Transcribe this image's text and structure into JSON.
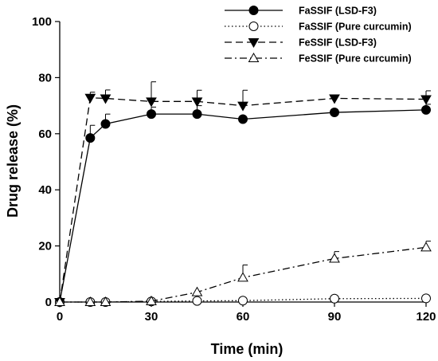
{
  "chart_data": {
    "type": "line",
    "title": "",
    "xlabel": "Time (min)",
    "ylabel": "Drug release (%)",
    "xlim": [
      0,
      120
    ],
    "ylim": [
      0,
      100
    ],
    "xticks": [
      0,
      30,
      60,
      90,
      120
    ],
    "yticks": [
      0,
      20,
      40,
      60,
      80,
      100
    ],
    "grid": false,
    "legend_position": "top-right",
    "series": [
      {
        "name": "FaSSIF (LSD-F3)",
        "marker": "filled-circle",
        "dash": "solid",
        "x": [
          0,
          10,
          15,
          30,
          45,
          60,
          90,
          120
        ],
        "y": [
          0,
          58.5,
          63.5,
          67,
          67,
          65.2,
          67.6,
          68.5
        ],
        "err": [
          0,
          4.5,
          3.5,
          2.5,
          3,
          0,
          0,
          2
        ]
      },
      {
        "name": "FaSSIF (Pure curcumin)",
        "marker": "open-circle",
        "dash": "dotted",
        "x": [
          0,
          10,
          15,
          30,
          45,
          60,
          90,
          120
        ],
        "y": [
          0,
          0,
          0,
          0.2,
          0.4,
          0.5,
          1.2,
          1.3
        ],
        "err": [
          0,
          0,
          0,
          0,
          0,
          0,
          0,
          0
        ]
      },
      {
        "name": "FeSSIF (LSD-F3)",
        "marker": "filled-triangle-down",
        "dash": "dashed",
        "x": [
          0,
          10,
          15,
          30,
          45,
          60,
          90,
          120
        ],
        "y": [
          0,
          72.8,
          72.6,
          71.5,
          71.5,
          70,
          72.6,
          72.3
        ],
        "err": [
          0,
          2,
          3,
          7,
          4,
          5.5,
          0,
          3
        ]
      },
      {
        "name": "FeSSIF (Pure curcumin)",
        "marker": "open-triangle-up",
        "dash": "dash-dot",
        "x": [
          0,
          10,
          15,
          30,
          45,
          60,
          90,
          120
        ],
        "y": [
          0,
          0,
          0,
          0.3,
          3.5,
          8.7,
          15.5,
          19.5
        ],
        "err": [
          0,
          0,
          0,
          0,
          0,
          4.5,
          2.5,
          2.2
        ]
      }
    ]
  }
}
